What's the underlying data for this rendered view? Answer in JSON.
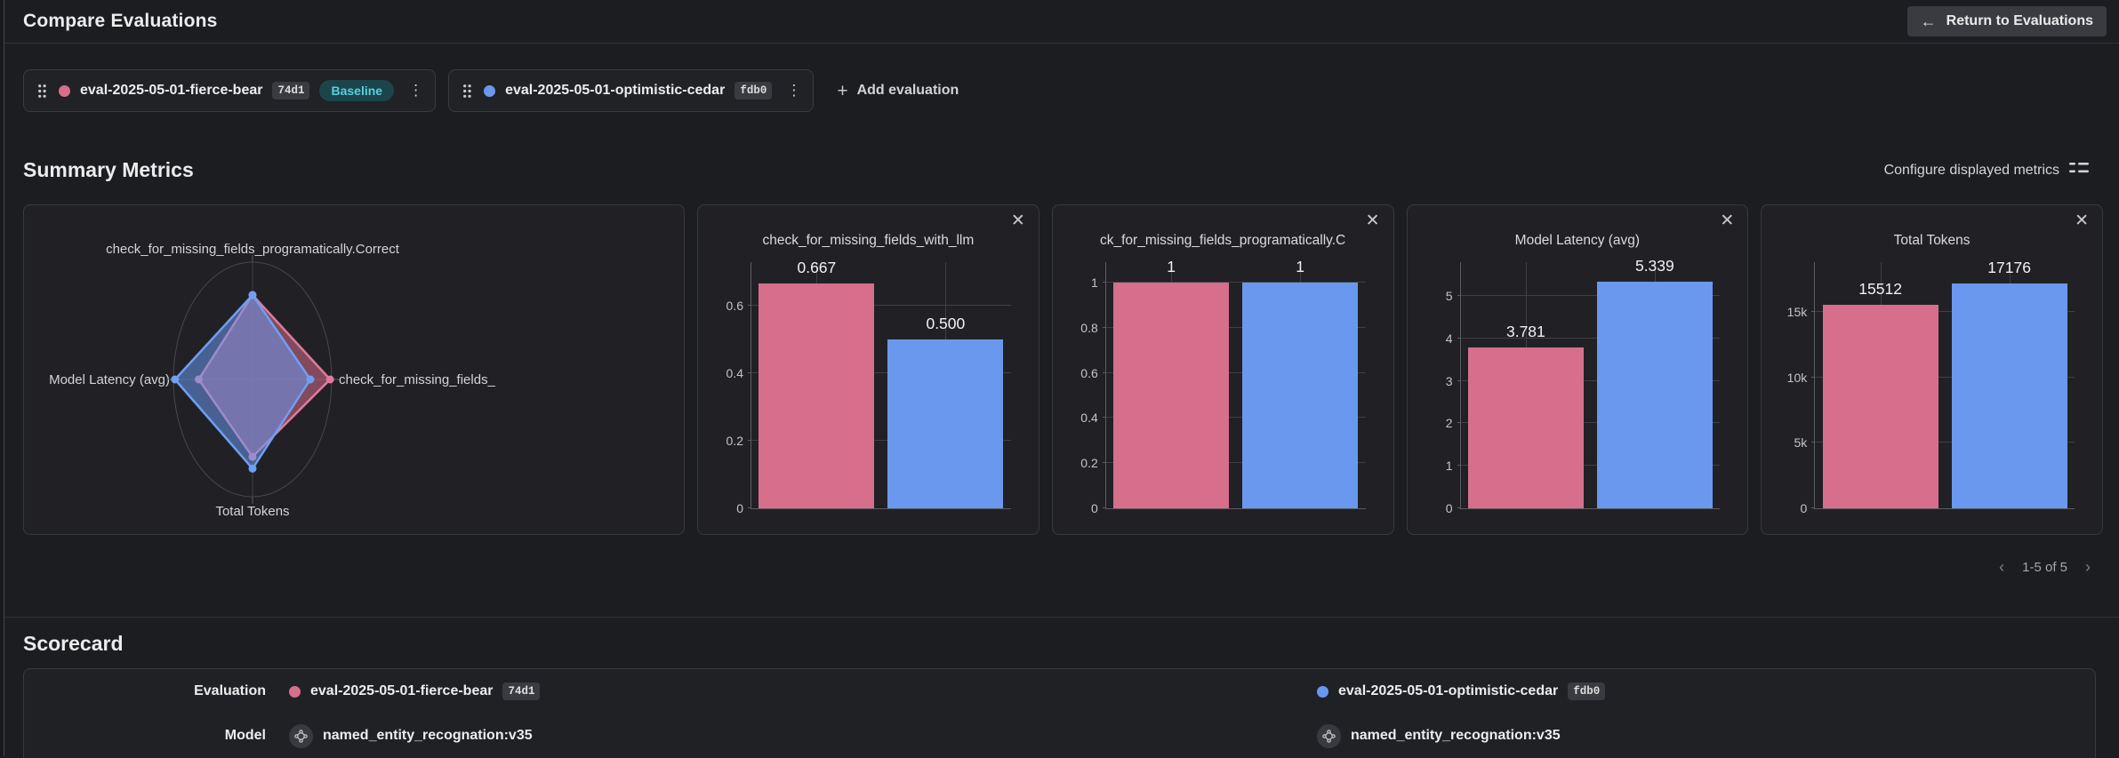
{
  "icons": {
    "back_arrow": "←",
    "plus": "+",
    "close": "✕",
    "kebab": "⋮",
    "chevron_left": "‹",
    "chevron_right": "›"
  },
  "colors": {
    "pink": "#d66e8c",
    "blue": "#6a98ee",
    "baseline_bg": "#1c444b",
    "baseline_text": "#56d0dd"
  },
  "header": {
    "title": "Compare Evaluations",
    "return_button": "Return to Evaluations"
  },
  "evaluations": [
    {
      "name": "eval-2025-05-01-fierce-bear",
      "id": "74d1",
      "color": "#d66e8c",
      "stroke": "#e07a9e",
      "baseline_label": "Baseline"
    },
    {
      "name": "eval-2025-05-01-optimistic-cedar",
      "id": "fdb0",
      "color": "#6a98ee",
      "stroke": "#6f9ff2"
    }
  ],
  "add_evaluation_label": "Add evaluation",
  "summary": {
    "title": "Summary Metrics",
    "configure_label": "Configure displayed metrics",
    "pagination": "1-5 of 5"
  },
  "scorecard": {
    "title": "Scorecard",
    "row_labels": [
      "Evaluation",
      "Model"
    ],
    "models": [
      "named_entity_recognation:v35",
      "named_entity_recognation:v35"
    ]
  },
  "chart_data": [
    {
      "type": "radar",
      "axes": [
        "check_for_missing_fields_programatically.Correct",
        "check_for_missing_fields_",
        "Total Tokens",
        "Model Latency (avg)"
      ],
      "axis_order": [
        "top",
        "right",
        "bottom",
        "left"
      ],
      "series": [
        {
          "name": "eval-2025-05-01-fierce-bear",
          "color": "#d66e8c",
          "stroke": "#e07a9e",
          "fractions": [
            0.72,
            0.98,
            0.66,
            0.68
          ]
        },
        {
          "name": "eval-2025-05-01-optimistic-cedar",
          "color": "#6a98ee",
          "stroke": "#6f9ff2",
          "fractions": [
            0.72,
            0.73,
            0.76,
            0.98
          ]
        }
      ]
    },
    {
      "type": "bar",
      "title": "check_for_missing_fields_with_llm",
      "categories": [
        "eval-2025-05-01-fierce-bear",
        "eval-2025-05-01-optimistic-cedar"
      ],
      "values": [
        0.667,
        0.5
      ],
      "value_labels": [
        "0.667",
        "0.500"
      ],
      "yticks": [
        {
          "v": 0,
          "label": "0"
        },
        {
          "v": 0.2,
          "label": "0.2"
        },
        {
          "v": 0.4,
          "label": "0.4"
        },
        {
          "v": 0.6,
          "label": "0.6"
        }
      ],
      "ymax": 0.73
    },
    {
      "type": "bar",
      "title": "ck_for_missing_fields_programatically.C",
      "categories": [
        "eval-2025-05-01-fierce-bear",
        "eval-2025-05-01-optimistic-cedar"
      ],
      "values": [
        1,
        1
      ],
      "value_labels": [
        "1",
        "1"
      ],
      "yticks": [
        {
          "v": 0,
          "label": "0"
        },
        {
          "v": 0.2,
          "label": "0.2"
        },
        {
          "v": 0.4,
          "label": "0.4"
        },
        {
          "v": 0.6,
          "label": "0.6"
        },
        {
          "v": 0.8,
          "label": "0.8"
        },
        {
          "v": 1,
          "label": "1"
        }
      ],
      "ymax": 1.09
    },
    {
      "type": "bar",
      "title": "Model Latency (avg)",
      "categories": [
        "eval-2025-05-01-fierce-bear",
        "eval-2025-05-01-optimistic-cedar"
      ],
      "values": [
        3.781,
        5.339
      ],
      "value_labels": [
        "3.781",
        "5.339"
      ],
      "yticks": [
        {
          "v": 0,
          "label": "0"
        },
        {
          "v": 1,
          "label": "1"
        },
        {
          "v": 2,
          "label": "2"
        },
        {
          "v": 3,
          "label": "3"
        },
        {
          "v": 4,
          "label": "4"
        },
        {
          "v": 5,
          "label": "5"
        }
      ],
      "ymax": 5.8
    },
    {
      "type": "bar",
      "title": "Total Tokens",
      "categories": [
        "eval-2025-05-01-fierce-bear",
        "eval-2025-05-01-optimistic-cedar"
      ],
      "values": [
        15512,
        17176
      ],
      "value_labels": [
        "15512",
        "17176"
      ],
      "yticks": [
        {
          "v": 0,
          "label": "0"
        },
        {
          "v": 5000,
          "label": "5k"
        },
        {
          "v": 10000,
          "label": "10k"
        },
        {
          "v": 15000,
          "label": "15k"
        }
      ],
      "ymax": 18800
    }
  ]
}
